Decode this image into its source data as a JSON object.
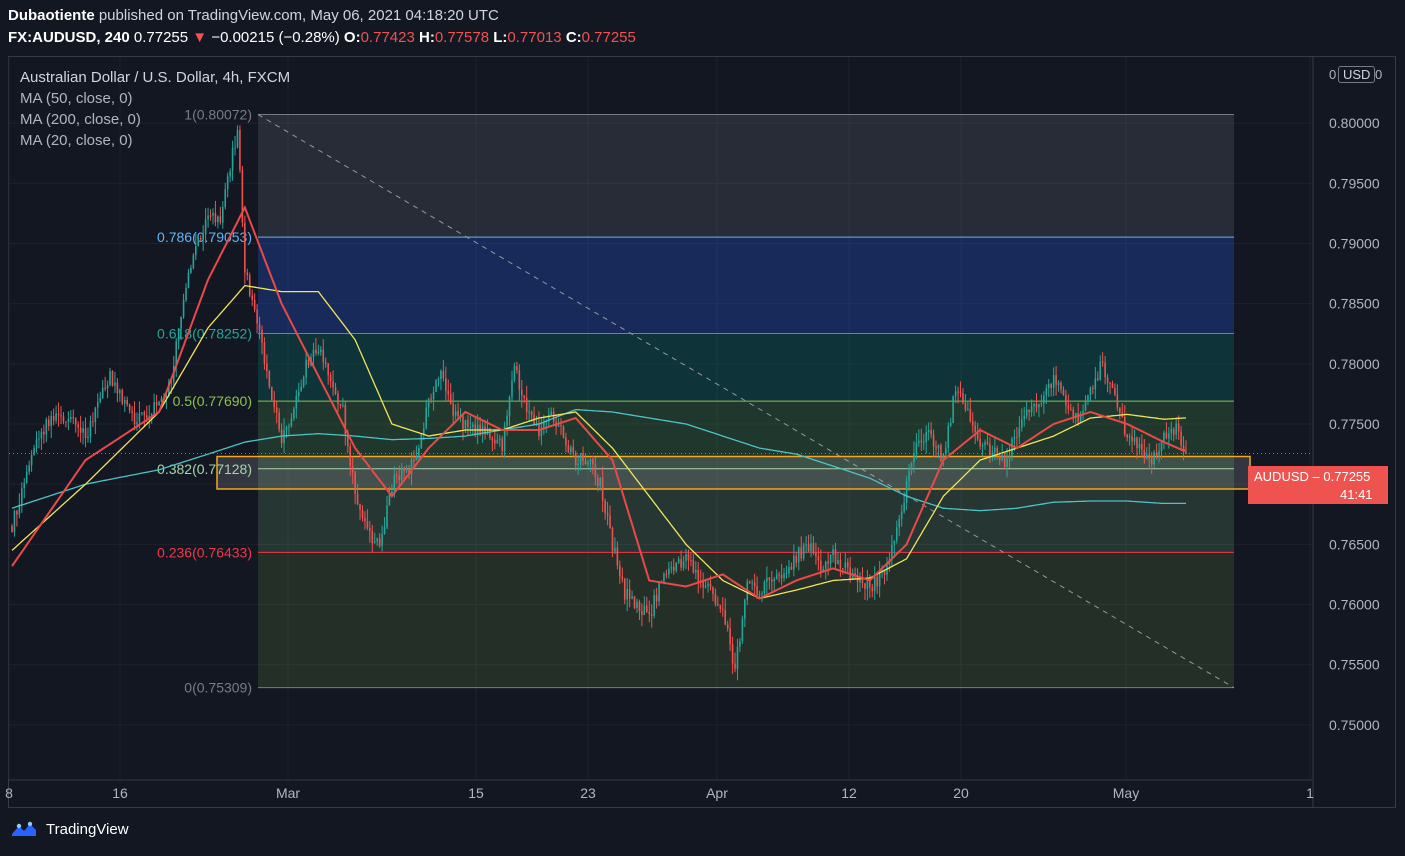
{
  "header": {
    "author": "Dubaotiente",
    "published": "published on TradingView.com, May 06, 2021 04:18:20 UTC",
    "symbol": "FX:AUDUSD, 240",
    "last": "0.77255",
    "change": "−0.00215 (−0.28%)",
    "open_label": "O:",
    "open": "0.77423",
    "high_label": "H:",
    "high": "0.77578",
    "low_label": "L:",
    "low": "0.77013",
    "close_label": "C:",
    "close": "0.77255"
  },
  "legend": {
    "title": "Australian Dollar / U.S. Dollar, 4h, FXCM",
    "ma50": "MA (50, close, 0)",
    "ma200": "MA (200, close, 0)",
    "ma20": "MA (20, close, 0)"
  },
  "axis": {
    "currency": "USD",
    "currency_left": "0",
    "currency_right": "0",
    "price_tag_symbol": "AUDUSD",
    "price_tag_price": "0.77255",
    "price_tag_dash": "–",
    "price_tag_timer": "41:41"
  },
  "footer": {
    "brand": "TradingView"
  },
  "colors": {
    "background": "#131722",
    "up": "#26a69a",
    "down": "#ef5350",
    "ma50": "#f0e55a",
    "ma200": "#4dc3c6",
    "ma20": "#e94a48"
  },
  "chart_data": {
    "type": "candlestick",
    "title": "Australian Dollar / U.S. Dollar, 4h, FXCM",
    "ylim": [
      0.7455,
      0.8055
    ],
    "y_ticks": [
      "0.80000",
      "0.79500",
      "0.79000",
      "0.78500",
      "0.78000",
      "0.77500",
      "0.77000",
      "0.76500",
      "0.76000",
      "0.75500",
      "0.75000"
    ],
    "x_ticks": [
      "8",
      "16",
      "Mar",
      "15",
      "23",
      "Apr",
      "12",
      "20",
      "May",
      "1"
    ],
    "fib_levels": [
      {
        "label": "1(0.80072)",
        "value": 0.80072
      },
      {
        "label": "0.786(0.79053)",
        "value": 0.79053
      },
      {
        "label": "0.618(0.78252)",
        "value": 0.78252
      },
      {
        "label": "0.5(0.77690)",
        "value": 0.7769
      },
      {
        "label": "0.382(0.77128)",
        "value": 0.77128
      },
      {
        "label": "0.236(0.76433)",
        "value": 0.76433
      },
      {
        "label": "0(0.75309)",
        "value": 0.75309
      }
    ],
    "support_zone": [
      0.7696,
      0.7723
    ],
    "last_price": 0.77255,
    "anchor_points": [
      [
        0,
        0.7665
      ],
      [
        10,
        0.774
      ],
      [
        20,
        0.776
      ],
      [
        30,
        0.774
      ],
      [
        40,
        0.779
      ],
      [
        50,
        0.775
      ],
      [
        60,
        0.777
      ],
      [
        65,
        0.7785
      ],
      [
        70,
        0.7855
      ],
      [
        75,
        0.7895
      ],
      [
        80,
        0.7925
      ],
      [
        85,
        0.792
      ],
      [
        88,
        0.7955
      ],
      [
        92,
        0.7995
      ],
      [
        95,
        0.788
      ],
      [
        100,
        0.7835
      ],
      [
        105,
        0.778
      ],
      [
        110,
        0.774
      ],
      [
        115,
        0.776
      ],
      [
        120,
        0.78
      ],
      [
        125,
        0.781
      ],
      [
        130,
        0.779
      ],
      [
        135,
        0.776
      ],
      [
        140,
        0.769
      ],
      [
        145,
        0.766
      ],
      [
        150,
        0.765
      ],
      [
        155,
        0.77
      ],
      [
        160,
        0.771
      ],
      [
        165,
        0.772
      ],
      [
        170,
        0.777
      ],
      [
        175,
        0.779
      ],
      [
        180,
        0.776
      ],
      [
        185,
        0.775
      ],
      [
        190,
        0.7745
      ],
      [
        195,
        0.774
      ],
      [
        200,
        0.773
      ],
      [
        205,
        0.78
      ],
      [
        210,
        0.776
      ],
      [
        215,
        0.7745
      ],
      [
        220,
        0.7755
      ],
      [
        225,
        0.774
      ],
      [
        230,
        0.772
      ],
      [
        235,
        0.772
      ],
      [
        240,
        0.77
      ],
      [
        245,
        0.765
      ],
      [
        250,
        0.761
      ],
      [
        255,
        0.76
      ],
      [
        260,
        0.759
      ],
      [
        265,
        0.762
      ],
      [
        270,
        0.763
      ],
      [
        275,
        0.764
      ],
      [
        280,
        0.762
      ],
      [
        285,
        0.761
      ],
      [
        290,
        0.7595
      ],
      [
        295,
        0.7545
      ],
      [
        300,
        0.762
      ],
      [
        305,
        0.761
      ],
      [
        310,
        0.7625
      ],
      [
        315,
        0.762
      ],
      [
        320,
        0.764
      ],
      [
        325,
        0.765
      ],
      [
        330,
        0.763
      ],
      [
        335,
        0.764
      ],
      [
        340,
        0.763
      ],
      [
        345,
        0.762
      ],
      [
        350,
        0.7615
      ],
      [
        355,
        0.7625
      ],
      [
        360,
        0.765
      ],
      [
        365,
        0.77
      ],
      [
        370,
        0.774
      ],
      [
        375,
        0.774
      ],
      [
        380,
        0.772
      ],
      [
        385,
        0.778
      ],
      [
        390,
        0.776
      ],
      [
        395,
        0.773
      ],
      [
        400,
        0.773
      ],
      [
        405,
        0.772
      ],
      [
        410,
        0.774
      ],
      [
        415,
        0.776
      ],
      [
        420,
        0.777
      ],
      [
        425,
        0.779
      ],
      [
        430,
        0.777
      ],
      [
        435,
        0.7755
      ],
      [
        440,
        0.778
      ],
      [
        445,
        0.78
      ],
      [
        450,
        0.777
      ],
      [
        455,
        0.774
      ],
      [
        460,
        0.773
      ],
      [
        465,
        0.772
      ],
      [
        470,
        0.774
      ],
      [
        475,
        0.7745
      ],
      [
        478,
        0.7726
      ]
    ],
    "ma_series": {
      "ma20": [
        [
          0,
          0.7632
        ],
        [
          30,
          0.772
        ],
        [
          60,
          0.776
        ],
        [
          80,
          0.787
        ],
        [
          95,
          0.793
        ],
        [
          110,
          0.785
        ],
        [
          125,
          0.779
        ],
        [
          140,
          0.773
        ],
        [
          155,
          0.769
        ],
        [
          170,
          0.773
        ],
        [
          185,
          0.776
        ],
        [
          200,
          0.7745
        ],
        [
          215,
          0.7745
        ],
        [
          230,
          0.7755
        ],
        [
          245,
          0.772
        ],
        [
          260,
          0.762
        ],
        [
          275,
          0.7615
        ],
        [
          290,
          0.7625
        ],
        [
          305,
          0.7605
        ],
        [
          320,
          0.762
        ],
        [
          335,
          0.763
        ],
        [
          350,
          0.762
        ],
        [
          365,
          0.765
        ],
        [
          380,
          0.772
        ],
        [
          395,
          0.7745
        ],
        [
          410,
          0.773
        ],
        [
          425,
          0.775
        ],
        [
          440,
          0.776
        ],
        [
          455,
          0.775
        ],
        [
          470,
          0.7735
        ],
        [
          478,
          0.7728
        ]
      ],
      "ma50": [
        [
          0,
          0.7645
        ],
        [
          30,
          0.77
        ],
        [
          60,
          0.776
        ],
        [
          80,
          0.783
        ],
        [
          95,
          0.7865
        ],
        [
          110,
          0.786
        ],
        [
          125,
          0.786
        ],
        [
          140,
          0.782
        ],
        [
          155,
          0.775
        ],
        [
          170,
          0.774
        ],
        [
          185,
          0.7745
        ],
        [
          200,
          0.7745
        ],
        [
          215,
          0.7755
        ],
        [
          230,
          0.776
        ],
        [
          245,
          0.773
        ],
        [
          260,
          0.769
        ],
        [
          275,
          0.765
        ],
        [
          290,
          0.762
        ],
        [
          305,
          0.7605
        ],
        [
          320,
          0.7612
        ],
        [
          335,
          0.762
        ],
        [
          350,
          0.7622
        ],
        [
          365,
          0.7638
        ],
        [
          380,
          0.769
        ],
        [
          395,
          0.772
        ],
        [
          410,
          0.773
        ],
        [
          425,
          0.774
        ],
        [
          440,
          0.7755
        ],
        [
          455,
          0.7758
        ],
        [
          470,
          0.7754
        ],
        [
          478,
          0.7755
        ]
      ],
      "ma200": [
        [
          0,
          0.768
        ],
        [
          30,
          0.77
        ],
        [
          60,
          0.7712
        ],
        [
          80,
          0.7725
        ],
        [
          95,
          0.7735
        ],
        [
          110,
          0.774
        ],
        [
          125,
          0.7742
        ],
        [
          140,
          0.774
        ],
        [
          155,
          0.7737
        ],
        [
          170,
          0.7738
        ],
        [
          185,
          0.774
        ],
        [
          200,
          0.7745
        ],
        [
          215,
          0.775
        ],
        [
          230,
          0.7762
        ],
        [
          245,
          0.776
        ],
        [
          260,
          0.7755
        ],
        [
          275,
          0.775
        ],
        [
          290,
          0.774
        ],
        [
          305,
          0.773
        ],
        [
          320,
          0.7725
        ],
        [
          335,
          0.7715
        ],
        [
          350,
          0.7705
        ],
        [
          365,
          0.769
        ],
        [
          380,
          0.768
        ],
        [
          395,
          0.7678
        ],
        [
          410,
          0.768
        ],
        [
          425,
          0.7685
        ],
        [
          440,
          0.7686
        ],
        [
          455,
          0.7686
        ],
        [
          470,
          0.7684
        ],
        [
          478,
          0.7684
        ]
      ]
    }
  }
}
